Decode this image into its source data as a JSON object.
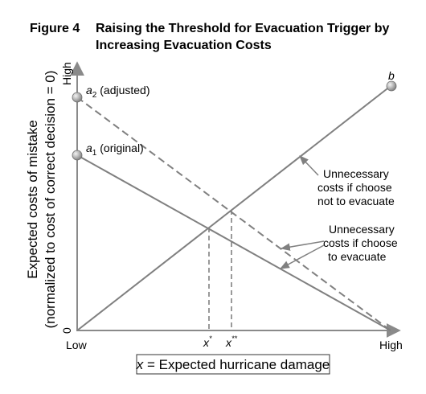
{
  "figure": {
    "number": "Figure 4",
    "title_line1": "Raising the Threshold for Evacuation Trigger by",
    "title_line2": "Increasing Evacuation Costs"
  },
  "y_axis": {
    "title_line1": "Expected costs of mistake",
    "title_line2": "(normalized to cost of correct decision = 0)",
    "high_label": "High",
    "zero_label": "0"
  },
  "x_axis": {
    "low_label": "Low",
    "high_label": "High",
    "boxed_label_var": "x",
    "boxed_label_rest": " = Expected hurricane damage"
  },
  "points": {
    "a2": {
      "base": "a",
      "sub": "2",
      "suffix": " (adjusted)"
    },
    "a1": {
      "base": "a",
      "sub": "1",
      "suffix": " (original)"
    },
    "b": {
      "label": "b"
    }
  },
  "thresholds": {
    "x_star": {
      "base": "x",
      "sup": "*"
    },
    "x_star_star": {
      "base": "x",
      "sup": "**"
    }
  },
  "annotations": {
    "not_evacuate": {
      "line1": "Unnecessary",
      "line2": "costs if choose",
      "line3": "not to evacuate"
    },
    "evacuate": {
      "line1": "Unnecessary",
      "line2": "costs if choose",
      "line3": "to evacuate"
    }
  },
  "colors": {
    "line": "#808080",
    "axis": "#8a8a8a",
    "text": "#000000"
  }
}
